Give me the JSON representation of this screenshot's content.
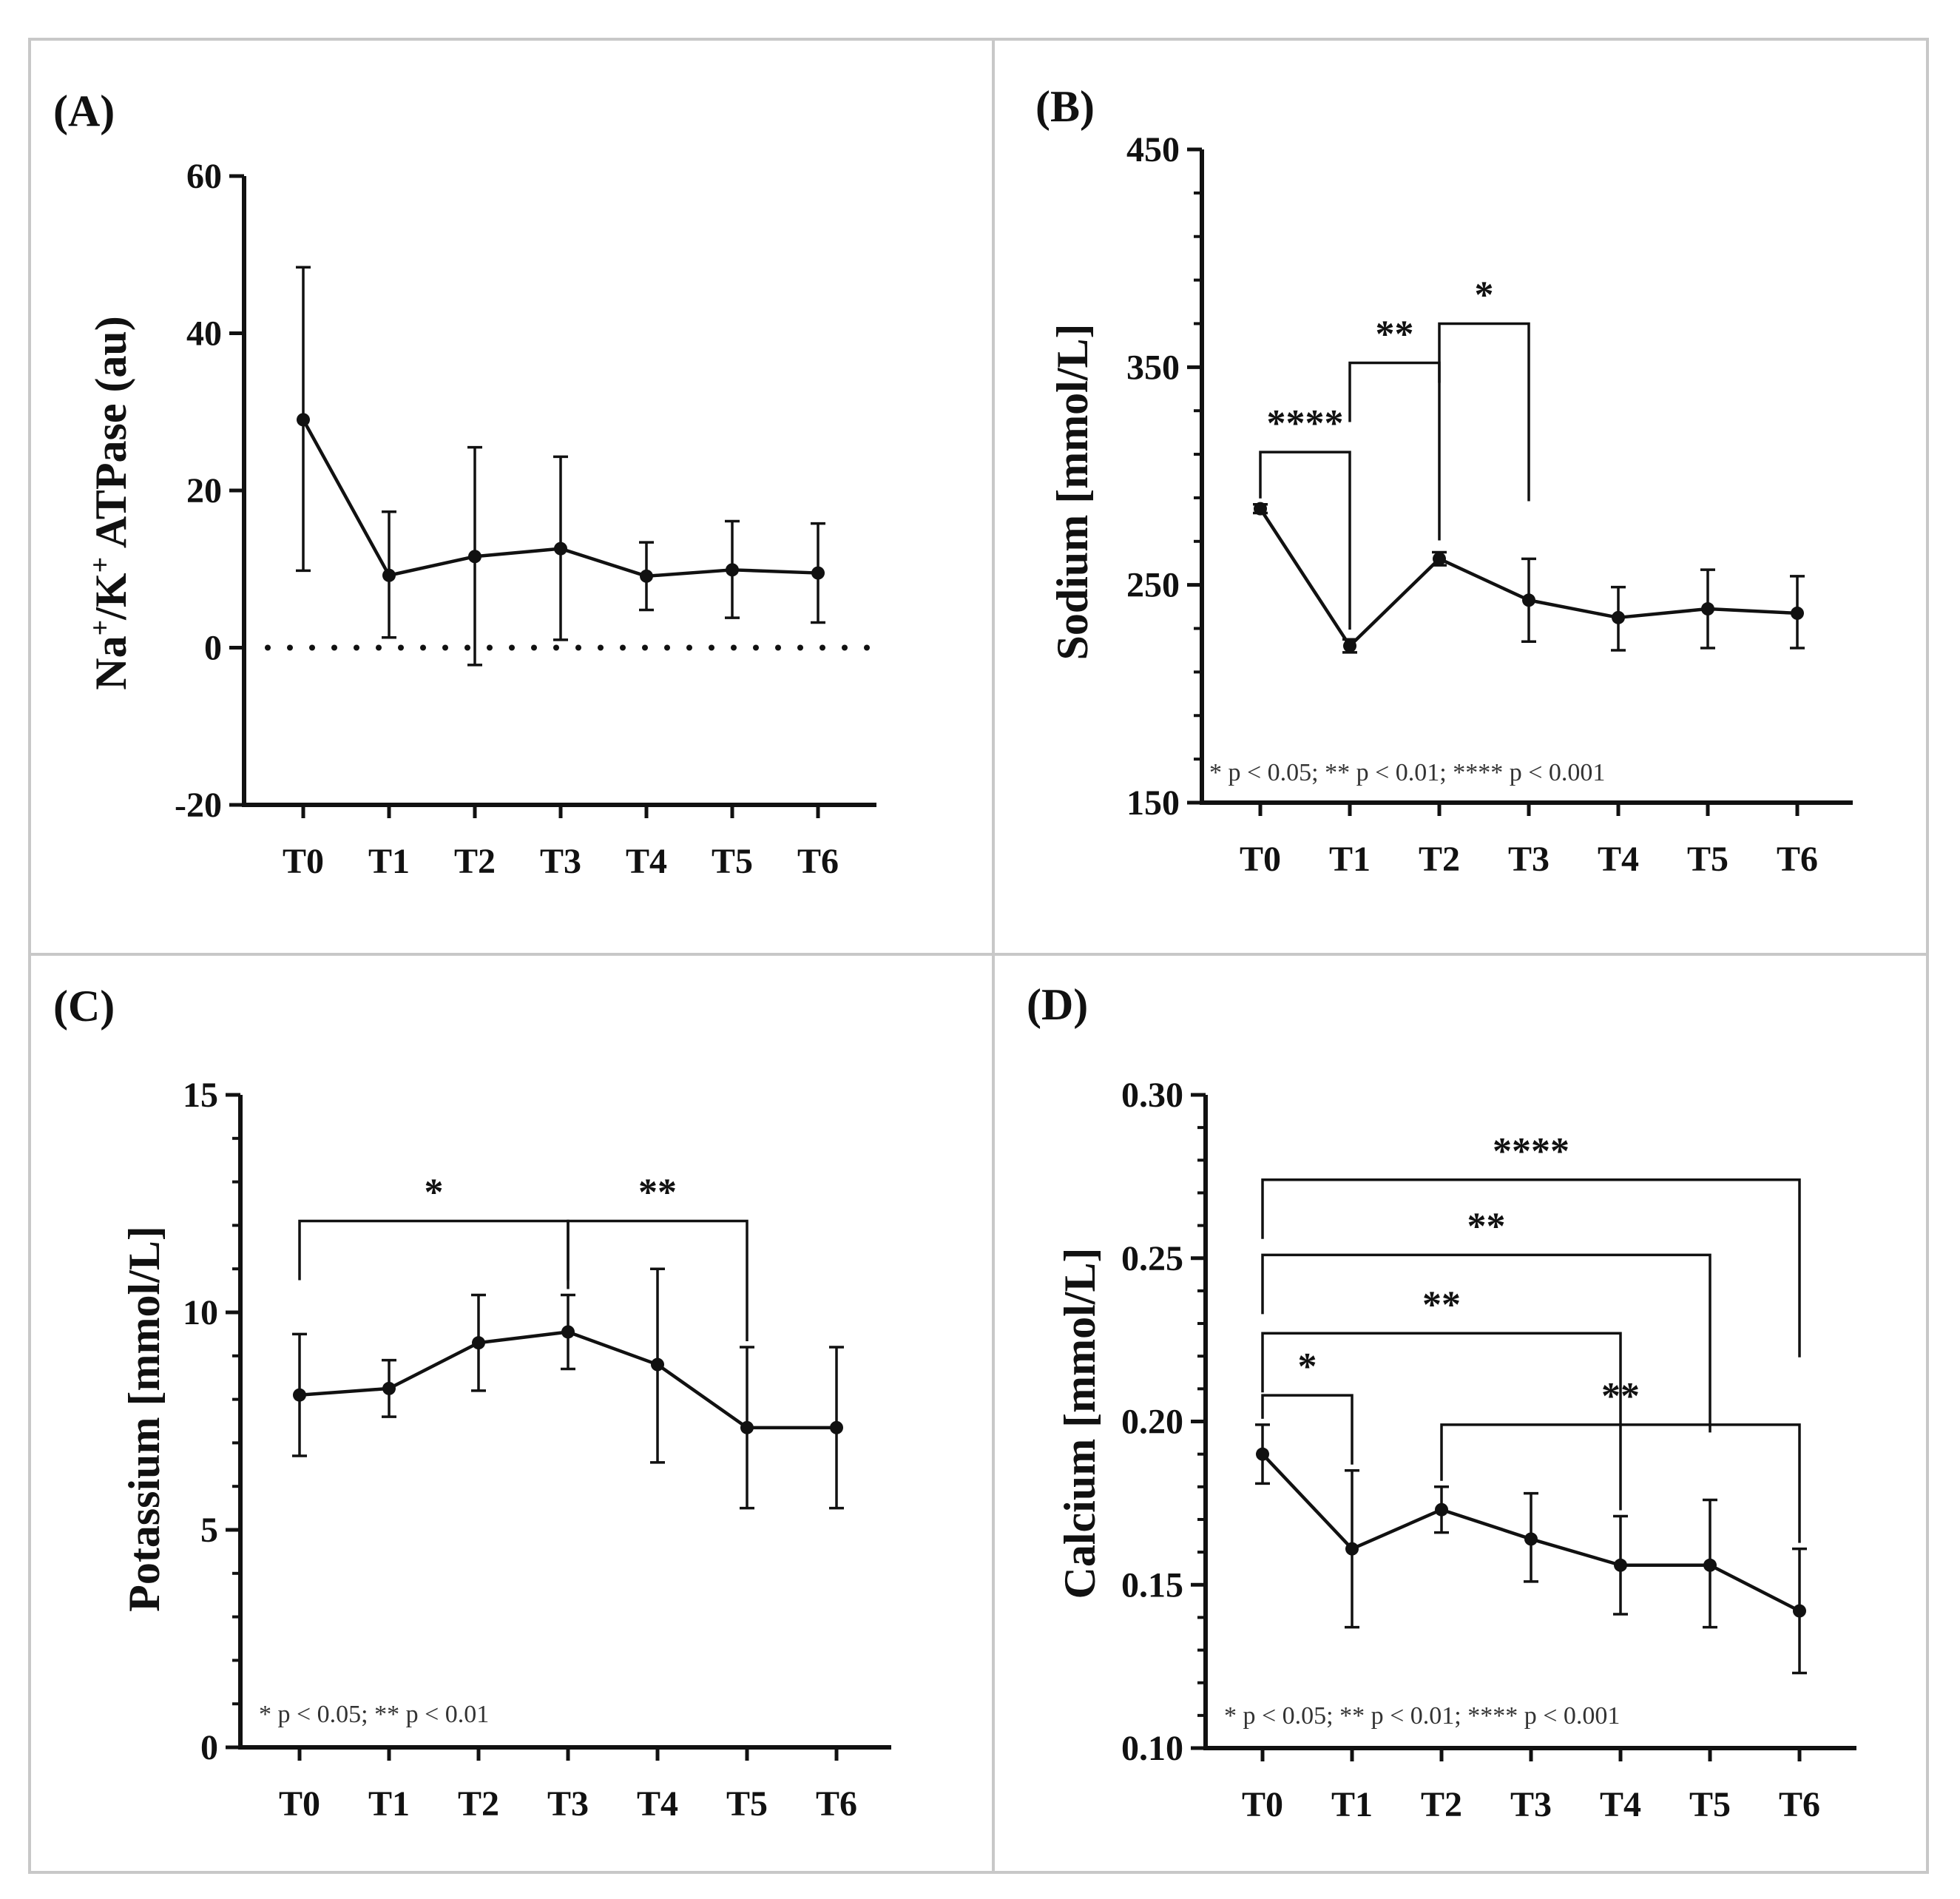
{
  "chart_data": [
    {
      "type": "line",
      "panel": "(A)",
      "ylabel_main": "Na",
      "ylabel_sup1": "+",
      "ylabel_mid": "/K",
      "ylabel_sup2": "+",
      "ylabel_rest": " ATPase (au)",
      "categories": [
        "T0",
        "T1",
        "T2",
        "T3",
        "T4",
        "T5",
        "T6"
      ],
      "y_ticks": [
        -20,
        0,
        20,
        40,
        60
      ],
      "ylim": [
        -20,
        60
      ],
      "values": [
        29,
        9.2,
        11.6,
        12.6,
        9.1,
        9.9,
        9.5
      ],
      "error_high": [
        48.4,
        17.3,
        25.5,
        24.3,
        13.4,
        16.1,
        15.8
      ],
      "error_low": [
        9.8,
        1.3,
        -2.2,
        1.0,
        4.8,
        3.8,
        3.2
      ],
      "reference_line": 0,
      "significance": [],
      "footnote": ""
    },
    {
      "type": "line",
      "panel": "(B)",
      "ylabel": "Sodium [mmol/L]",
      "categories": [
        "T0",
        "T1",
        "T2",
        "T3",
        "T4",
        "T5",
        "T6"
      ],
      "y_ticks": [
        150,
        250,
        350,
        450
      ],
      "ylim": [
        150,
        450
      ],
      "values": [
        285,
        222,
        262,
        243,
        235,
        239,
        237
      ],
      "error_high": [
        287,
        225,
        265,
        262,
        249,
        257,
        254
      ],
      "error_low": [
        283,
        219,
        259,
        224,
        220,
        221,
        221
      ],
      "significance": [
        {
          "from": 0,
          "to": 1,
          "label": "****",
          "level": 311
        },
        {
          "from": 1,
          "to": 2,
          "label": "**",
          "level": 352
        },
        {
          "from": 2,
          "to": 3,
          "label": "*",
          "level": 370
        }
      ],
      "footnote": "* p < 0.05; ** p < 0.01; **** p < 0.001"
    },
    {
      "type": "line",
      "panel": "(C)",
      "ylabel": "Potassium [mmol/L]",
      "categories": [
        "T0",
        "T1",
        "T2",
        "T3",
        "T4",
        "T5",
        "T6"
      ],
      "y_ticks": [
        0,
        5,
        10,
        15
      ],
      "ylim": [
        0,
        15
      ],
      "values": [
        8.1,
        8.25,
        9.3,
        9.55,
        8.8,
        7.35,
        7.35
      ],
      "error_high": [
        9.5,
        8.9,
        10.4,
        10.4,
        11.0,
        9.2,
        9.2
      ],
      "error_low": [
        6.7,
        7.6,
        8.2,
        8.7,
        6.55,
        5.5,
        5.5
      ],
      "significance": [
        {
          "from": 0,
          "to": 3,
          "label": "*",
          "level": 12.1
        },
        {
          "from": 3,
          "to": 5,
          "label": "**",
          "level": 12.1
        }
      ],
      "footnote": "* p < 0.05; ** p < 0.01"
    },
    {
      "type": "line",
      "panel": "(D)",
      "ylabel": "Calcium [mmol/L]",
      "categories": [
        "T0",
        "T1",
        "T2",
        "T3",
        "T4",
        "T5",
        "T6"
      ],
      "y_ticks": [
        "0.10",
        "0.15",
        "0.20",
        "0.25",
        "0.30"
      ],
      "ylim": [
        0.1,
        0.3
      ],
      "values": [
        0.19,
        0.161,
        0.173,
        0.164,
        0.156,
        0.156,
        0.142
      ],
      "error_high": [
        0.199,
        0.185,
        0.18,
        0.178,
        0.171,
        0.176,
        0.161
      ],
      "error_low": [
        0.181,
        0.137,
        0.166,
        0.151,
        0.141,
        0.137,
        0.123
      ],
      "significance": [
        {
          "from": 0,
          "to": 6,
          "label": "****",
          "level": 0.274
        },
        {
          "from": 0,
          "to": 5,
          "label": "**",
          "level": 0.251
        },
        {
          "from": 0,
          "to": 4,
          "label": "**",
          "level": 0.227
        },
        {
          "from": 0,
          "to": 1,
          "label": "*",
          "level": 0.208
        },
        {
          "from": 2,
          "to": 6,
          "label": "**",
          "level": 0.199
        }
      ],
      "footnote": "* p < 0.05; ** p < 0.01; **** p < 0.001"
    }
  ]
}
